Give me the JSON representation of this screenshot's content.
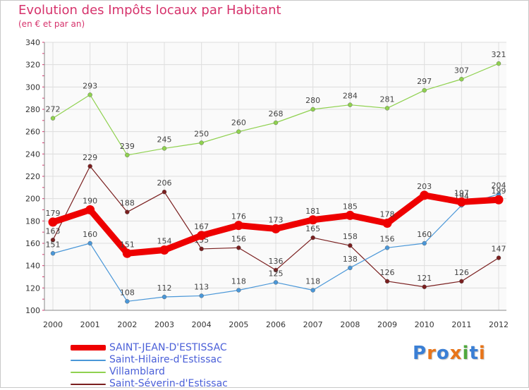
{
  "chart_data": {
    "type": "line",
    "title": "Evolution des Impôts locaux par Habitant",
    "subtitle": "(en € et par an)",
    "xlabel": "",
    "ylabel": "",
    "categories": [
      "2000",
      "2001",
      "2002",
      "2003",
      "2004",
      "2005",
      "2006",
      "2007",
      "2008",
      "2009",
      "2010",
      "2011",
      "2012"
    ],
    "ylim": [
      100,
      340
    ],
    "yticks": [
      "100",
      "120",
      "140",
      "160",
      "180",
      "200",
      "220",
      "240",
      "260",
      "280",
      "300",
      "320",
      "340"
    ],
    "series": [
      {
        "name": "Villamblard",
        "color": "#8fd14f",
        "values": [
          272,
          293,
          239,
          245,
          250,
          260,
          268,
          280,
          284,
          281,
          297,
          307,
          321
        ]
      },
      {
        "name": "Saint-Séverin-d'Estissac",
        "color": "#7a1f1f",
        "values": [
          163,
          229,
          188,
          206,
          155,
          156,
          136,
          165,
          158,
          126,
          121,
          126,
          147
        ]
      },
      {
        "name": "Saint-Hilaire-d'Estissac",
        "color": "#4a97d8",
        "values": [
          151,
          160,
          108,
          112,
          113,
          118,
          125,
          118,
          138,
          156,
          160,
          194,
          204
        ]
      },
      {
        "name": "SAINT-JEAN-D'ESTISSAC",
        "color": "#ee0000",
        "values": [
          179,
          190,
          151,
          154,
          167,
          176,
          173,
          181,
          185,
          178,
          203,
          197,
          199
        ]
      }
    ]
  },
  "legend": {
    "items": [
      {
        "label": "SAINT-JEAN-D'ESTISSAC",
        "color": "#ee0000"
      },
      {
        "label": "Saint-Hilaire-d'Estissac",
        "color": "#4a97d8"
      },
      {
        "label": "Villamblard",
        "color": "#8fd14f"
      },
      {
        "label": "Saint-Séverin-d'Estissac",
        "color": "#7a1f1f"
      }
    ]
  },
  "logo": {
    "text": "Proxiti",
    "colors": [
      "#3a7fd5",
      "#e8751a",
      "#3a7fd5",
      "#e8751a",
      "#4fa83d",
      "#3a7fd5",
      "#e8751a"
    ]
  }
}
